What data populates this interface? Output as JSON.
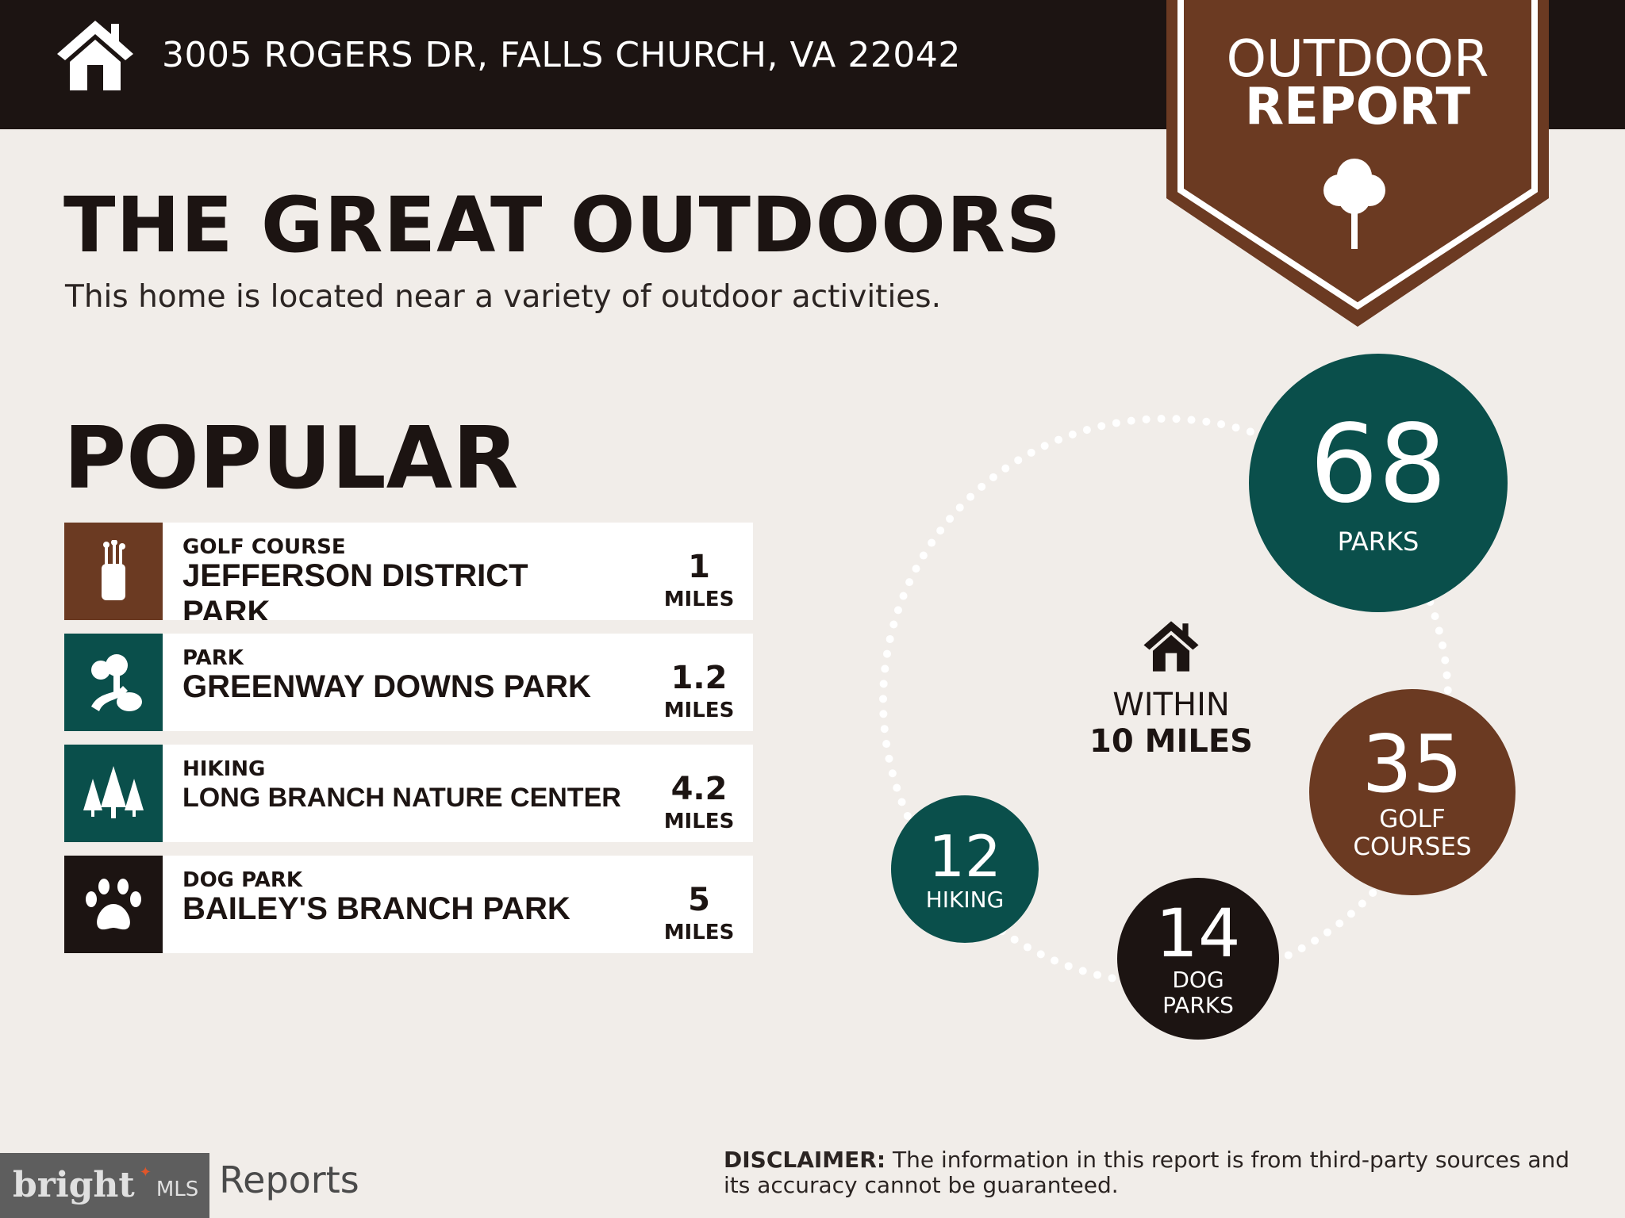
{
  "header": {
    "address": "3005 ROGERS DR, FALLS CHURCH, VA 22042",
    "badge_line1": "OUTDOOR",
    "badge_line2": "REPORT"
  },
  "title": "THE GREAT OUTDOORS",
  "subtitle": "This home is located near a variety of outdoor activities.",
  "popular": {
    "heading": "POPULAR",
    "items": [
      {
        "category": "GOLF COURSE",
        "name": "JEFFERSON DISTRICT PARK",
        "distance": "1",
        "unit": "MILES",
        "icon": "golf-bag-icon",
        "color": "#6b3a22"
      },
      {
        "category": "PARK",
        "name": "GREENWAY DOWNS PARK",
        "distance": "1.2",
        "unit": "MILES",
        "icon": "park-trees-icon",
        "color": "#0a4f4b"
      },
      {
        "category": "HIKING",
        "name": "LONG BRANCH NATURE CENTER",
        "distance": "4.2",
        "unit": "MILES",
        "icon": "pine-trees-icon",
        "color": "#0a4f4b"
      },
      {
        "category": "DOG PARK",
        "name": "BAILEY'S BRANCH PARK",
        "distance": "5",
        "unit": "MILES",
        "icon": "paw-icon",
        "color": "#1c1412"
      }
    ]
  },
  "summary": {
    "within_line1": "WITHIN",
    "within_line2": "10 MILES",
    "counts": [
      {
        "value": "68",
        "label": "PARKS",
        "color": "#0a4f4b"
      },
      {
        "value": "35",
        "label": "GOLF COURSES",
        "color": "#6b3a22"
      },
      {
        "value": "14",
        "label": "DOG PARKS",
        "color": "#1c1412"
      },
      {
        "value": "12",
        "label": "HIKING",
        "color": "#0a4f4b"
      }
    ]
  },
  "footer": {
    "reports_text": "Reports",
    "disclaimer_label": "DISCLAIMER:",
    "disclaimer_text": " The information in this report is from third-party sources and its accuracy cannot be guaranteed.",
    "watermark": "bright MLS"
  }
}
